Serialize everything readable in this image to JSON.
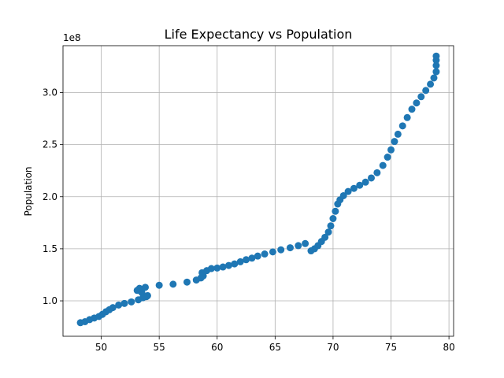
{
  "chart_data": {
    "type": "scatter",
    "title": "Life Expectancy vs Population",
    "xlabel": "",
    "ylabel": "Population",
    "offset_label": "1e8",
    "xlim": [
      46.7,
      80.4
    ],
    "ylim": [
      66000000.0,
      345000000.0
    ],
    "xticks": [
      50,
      55,
      60,
      65,
      70,
      75,
      80
    ],
    "xtick_labels": [
      "50",
      "55",
      "60",
      "65",
      "70",
      "75",
      "80"
    ],
    "yticks": [
      100000000.0,
      150000000.0,
      200000000.0,
      250000000.0,
      300000000.0
    ],
    "ytick_labels": [
      "1.0",
      "1.5",
      "2.0",
      "2.5",
      "3.0"
    ],
    "grid": true,
    "color": "#1f77b4",
    "points": [
      [
        48.2,
        79000000.0
      ],
      [
        48.6,
        80000000.0
      ],
      [
        49.0,
        82000000.0
      ],
      [
        49.4,
        83500000.0
      ],
      [
        49.8,
        85000000.0
      ],
      [
        50.1,
        87000000.0
      ],
      [
        50.4,
        89500000.0
      ],
      [
        50.7,
        91500000.0
      ],
      [
        51.0,
        93500000.0
      ],
      [
        51.5,
        96000000.0
      ],
      [
        52.0,
        97500000.0
      ],
      [
        52.6,
        99000000.0
      ],
      [
        53.2,
        101000000.0
      ],
      [
        53.6,
        103000000.0
      ],
      [
        54.0,
        105000000.0
      ],
      [
        53.1,
        110000000.0
      ],
      [
        53.3,
        112000000.0
      ],
      [
        53.8,
        113000000.0
      ],
      [
        53.5,
        108000000.0
      ],
      [
        53.9,
        104000000.0
      ],
      [
        55.0,
        115000000.0
      ],
      [
        56.2,
        116000000.0
      ],
      [
        57.4,
        118000000.0
      ],
      [
        58.2,
        120000000.0
      ],
      [
        58.6,
        122000000.0
      ],
      [
        58.8,
        124000000.0
      ],
      [
        58.7,
        127000000.0
      ],
      [
        59.1,
        129000000.0
      ],
      [
        59.5,
        131000000.0
      ],
      [
        60.0,
        131500000.0
      ],
      [
        60.5,
        132500000.0
      ],
      [
        61.0,
        134000000.0
      ],
      [
        61.5,
        135500000.0
      ],
      [
        62.0,
        137500000.0
      ],
      [
        62.5,
        139500000.0
      ],
      [
        63.0,
        141000000.0
      ],
      [
        63.5,
        143000000.0
      ],
      [
        64.1,
        145000000.0
      ],
      [
        64.8,
        147000000.0
      ],
      [
        65.5,
        149000000.0
      ],
      [
        66.3,
        151000000.0
      ],
      [
        67.0,
        153000000.0
      ],
      [
        67.6,
        155000000.0
      ],
      [
        68.1,
        148000000.0
      ],
      [
        68.4,
        150000000.0
      ],
      [
        68.7,
        153000000.0
      ],
      [
        69.0,
        157000000.0
      ],
      [
        69.3,
        161000000.0
      ],
      [
        69.6,
        166000000.0
      ],
      [
        69.8,
        172000000.0
      ],
      [
        70.0,
        179000000.0
      ],
      [
        70.2,
        186000000.0
      ],
      [
        70.4,
        193000000.0
      ],
      [
        70.6,
        197000000.0
      ],
      [
        70.9,
        201000000.0
      ],
      [
        71.3,
        205000000.0
      ],
      [
        71.8,
        208000000.0
      ],
      [
        72.3,
        211000000.0
      ],
      [
        72.8,
        214000000.0
      ],
      [
        73.3,
        218000000.0
      ],
      [
        73.8,
        223000000.0
      ],
      [
        74.3,
        230000000.0
      ],
      [
        74.7,
        238000000.0
      ],
      [
        75.0,
        245000000.0
      ],
      [
        75.3,
        253000000.0
      ],
      [
        75.6,
        260000000.0
      ],
      [
        76.0,
        268000000.0
      ],
      [
        76.4,
        276000000.0
      ],
      [
        76.8,
        284000000.0
      ],
      [
        77.2,
        290000000.0
      ],
      [
        77.6,
        296000000.0
      ],
      [
        78.0,
        302000000.0
      ],
      [
        78.4,
        308000000.0
      ],
      [
        78.7,
        314000000.0
      ],
      [
        78.9,
        320000000.0
      ],
      [
        78.9,
        326000000.0
      ],
      [
        78.9,
        331000000.0
      ],
      [
        78.9,
        335000000.0
      ]
    ]
  }
}
